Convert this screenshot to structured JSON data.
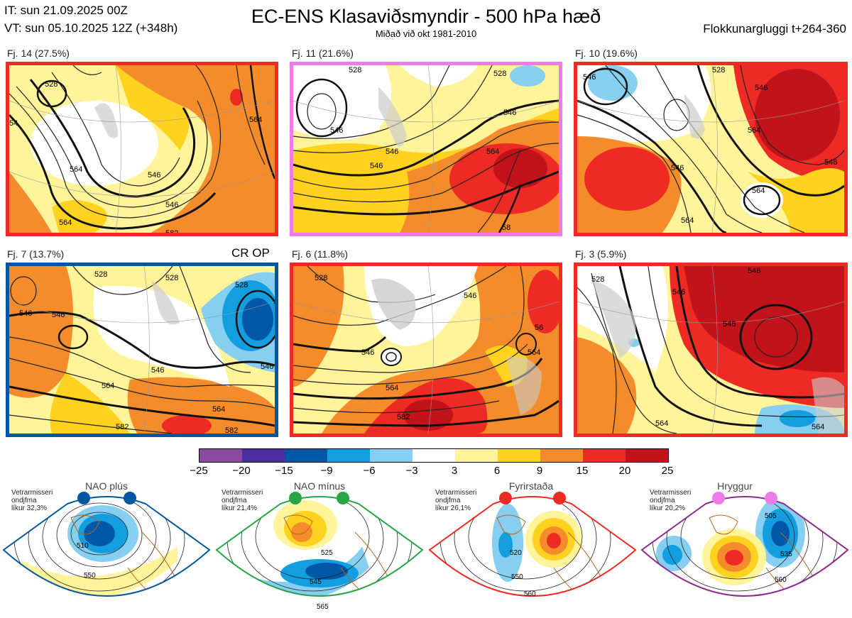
{
  "header": {
    "init_time": "IT: sun 21.09.2025 00Z",
    "valid_time": "VT: sun 05.10.2025 12Z  (+348h)",
    "title": "EC-ENS Klasaviðsmyndir - 500 hPa hæð",
    "subtitle": "Miðað við okt 1981-2010",
    "window": "Flokkunargluggi t+264-360"
  },
  "panels": [
    {
      "label": "Fj. 14 (27.5%)",
      "border_color": "#ee2a24",
      "contours": [
        "528",
        "546",
        "54",
        "546",
        "564",
        "546",
        "564",
        "582",
        "564"
      ]
    },
    {
      "label": "Fj. 11 (21.6%)",
      "border_color": "#f07be8",
      "contours": [
        "546",
        "528",
        "528",
        "546",
        "546",
        "564",
        "546",
        "58"
      ]
    },
    {
      "label": "Fj. 10 (19.6%)",
      "border_color": "#ee2a24",
      "contours": [
        "546",
        "528",
        "546",
        "564",
        "546",
        "564",
        "564",
        "546"
      ]
    },
    {
      "label": "Fj. 7 (13.7%)",
      "border_color": "#0057a0",
      "contours": [
        "546",
        "528",
        "528",
        "528",
        "546",
        "546",
        "564",
        "564",
        "582",
        "582",
        "546"
      ]
    },
    {
      "label": "Fj. 6 (11.8%)",
      "border_color": "#ee2a24",
      "contours": [
        "528",
        "546",
        "546",
        "564",
        "582",
        "564",
        "56"
      ]
    },
    {
      "label": "Fj. 3 (5.9%)",
      "border_color": "#ee2a24",
      "contours": [
        "528",
        "546",
        "546",
        "546",
        "564",
        "564"
      ]
    }
  ],
  "crop_label": "CR OP",
  "colorbar": {
    "ticks": [
      "−25",
      "−20",
      "−15",
      "−9",
      "−6",
      "−3",
      "3",
      "6",
      "9",
      "15",
      "20",
      "25"
    ],
    "colors": [
      "#8b4aa0",
      "#4b2f9e",
      "#0057a8",
      "#139ee0",
      "#86cff0",
      "#ffffff",
      "#fff49a",
      "#ffd21f",
      "#f58c2b",
      "#ee2a24",
      "#c2121a"
    ]
  },
  "regimes": [
    {
      "name": "NAO plús",
      "note": [
        "Vetrarmisseri",
        "ondjfma",
        "líkur 32,3%"
      ],
      "color": "#0057a0",
      "contours": [
        "510",
        "550"
      ]
    },
    {
      "name": "NAO mínus",
      "note": [
        "Vetrarmisseri",
        "ondjfma",
        "líkur 21,4%"
      ],
      "color": "#27a646",
      "contours": [
        "525",
        "545",
        "565"
      ]
    },
    {
      "name": "Fyrirstaða",
      "note": [
        "Vetrarmisseri",
        "ondjfma",
        "líkur 26,1%"
      ],
      "color": "#ee2a24",
      "contours": [
        "520",
        "550",
        "560"
      ]
    },
    {
      "name": "Hryggur",
      "note": [
        "Vetrarmisseri",
        "ondjfma",
        "líkur 20,2%"
      ],
      "color": "#8e2a8e",
      "contours": [
        "505",
        "535",
        "560"
      ]
    }
  ]
}
